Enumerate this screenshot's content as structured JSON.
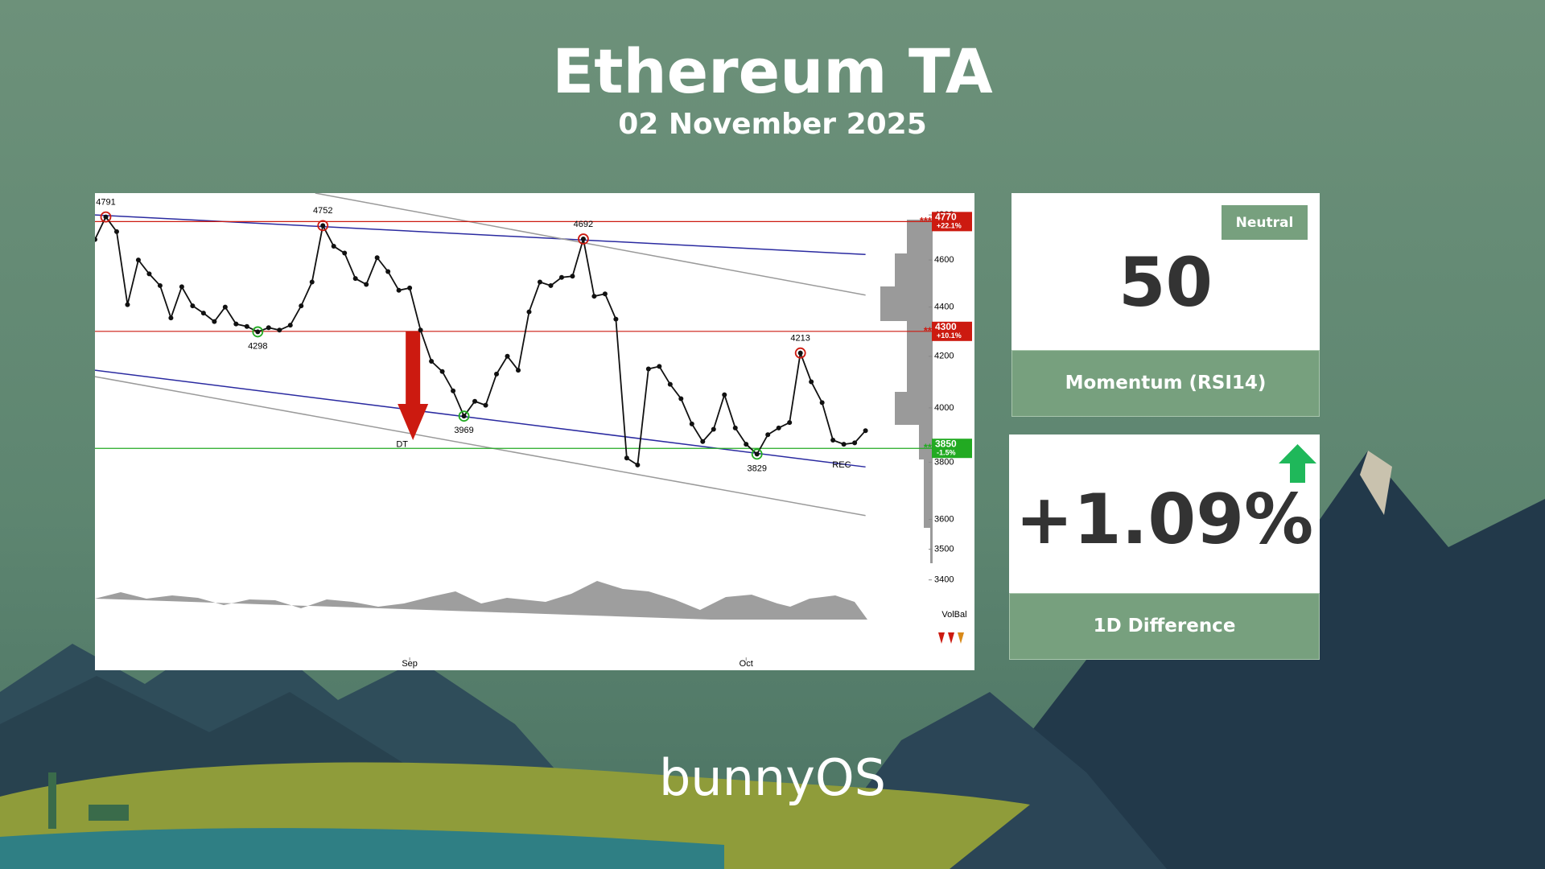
{
  "header": {
    "title": "Ethereum TA",
    "subtitle": "02 November 2025"
  },
  "chart_data": {
    "type": "line",
    "log_scale": true,
    "color": "#111111",
    "categories": [
      null,
      null,
      null,
      null,
      null,
      null,
      null,
      null,
      null,
      null,
      null,
      null,
      null,
      null,
      null,
      null,
      null,
      null,
      null,
      null,
      null,
      null,
      null,
      null,
      null,
      null,
      null,
      null,
      null,
      "Sep",
      null,
      null,
      null,
      null,
      null,
      null,
      null,
      null,
      null,
      null,
      null,
      null,
      null,
      null,
      null,
      null,
      null,
      null,
      null,
      null,
      null,
      null,
      null,
      null,
      null,
      null,
      null,
      null,
      null,
      null,
      "Oct",
      null,
      null,
      null,
      null,
      null,
      null,
      null,
      null,
      null,
      null,
      null
    ],
    "values": [
      4690,
      4791,
      4725,
      4410,
      4600,
      4540,
      4490,
      4355,
      4485,
      4405,
      4375,
      4340,
      4400,
      4330,
      4320,
      4298,
      4315,
      4305,
      4325,
      4405,
      4505,
      4752,
      4660,
      4630,
      4520,
      4495,
      4610,
      4550,
      4470,
      4480,
      4305,
      4180,
      4140,
      4065,
      3969,
      4025,
      4010,
      4130,
      4200,
      4145,
      4380,
      4505,
      4490,
      4525,
      4530,
      4692,
      4445,
      4455,
      4350,
      3815,
      3790,
      4150,
      4160,
      4090,
      4035,
      3940,
      3875,
      3920,
      4050,
      3925,
      3865,
      3829,
      3900,
      3925,
      3945,
      4213,
      4100,
      4020,
      3880,
      3865,
      3870,
      3915
    ],
    "value_labels": [
      null,
      "4791",
      null,
      null,
      null,
      null,
      null,
      null,
      null,
      null,
      null,
      null,
      null,
      null,
      null,
      "4298",
      null,
      null,
      null,
      null,
      null,
      "4752",
      null,
      null,
      null,
      null,
      null,
      null,
      null,
      null,
      null,
      null,
      null,
      null,
      "3969",
      null,
      null,
      null,
      null,
      null,
      null,
      null,
      null,
      null,
      null,
      "4692",
      null,
      null,
      null,
      null,
      null,
      null,
      null,
      null,
      null,
      null,
      null,
      null,
      null,
      null,
      null,
      "3829",
      null,
      null,
      null,
      "4213",
      null,
      null,
      null,
      null,
      null,
      null
    ],
    "ylim": [
      3160,
      4900
    ],
    "yticks": [
      3400,
      3500,
      3600,
      3800,
      4000,
      4200,
      4400,
      4600,
      4800
    ],
    "levels": [
      {
        "value": 4770,
        "change": "+22.1%",
        "prefix": "***",
        "color": "#cc1a10"
      },
      {
        "value": 4300,
        "change": "+10.1%",
        "prefix": "**",
        "color": "#cc1a10"
      },
      {
        "value": 3850,
        "change": "-1.5%",
        "prefix": "**",
        "color": "#22aa22"
      }
    ],
    "trendlines": [
      {
        "color": "#2a2aa0",
        "start": [
          0,
          4800
        ],
        "end": [
          71,
          4624
        ]
      },
      {
        "color": "#2a2aa0",
        "start": [
          0,
          4145
        ],
        "end": [
          71,
          3783
        ]
      },
      {
        "color": "#9a9a9a",
        "start": [
          20.3,
          4900
        ],
        "end": [
          71,
          4450
        ]
      },
      {
        "color": "#9a9a9a",
        "start": [
          0,
          4120
        ],
        "end": [
          71,
          3613
        ]
      }
    ],
    "arrow": {
      "x": 29.3,
      "from": 4300,
      "to": 3880,
      "color": "#cc1a10"
    },
    "annotations": [
      {
        "text": "DT",
        "at": [
          28.3,
          3864
        ]
      },
      {
        "text": "REC",
        "at": [
          68.8,
          3790
        ]
      }
    ],
    "volume_label": "VolBal"
  },
  "cards": [
    {
      "badge": "Neutral",
      "value": 50,
      "label": "Momentum (RSI14)"
    },
    {
      "value": "+1.09%",
      "label": "1D Difference"
    }
  ],
  "footer": {
    "brand": "bunnyOS"
  }
}
